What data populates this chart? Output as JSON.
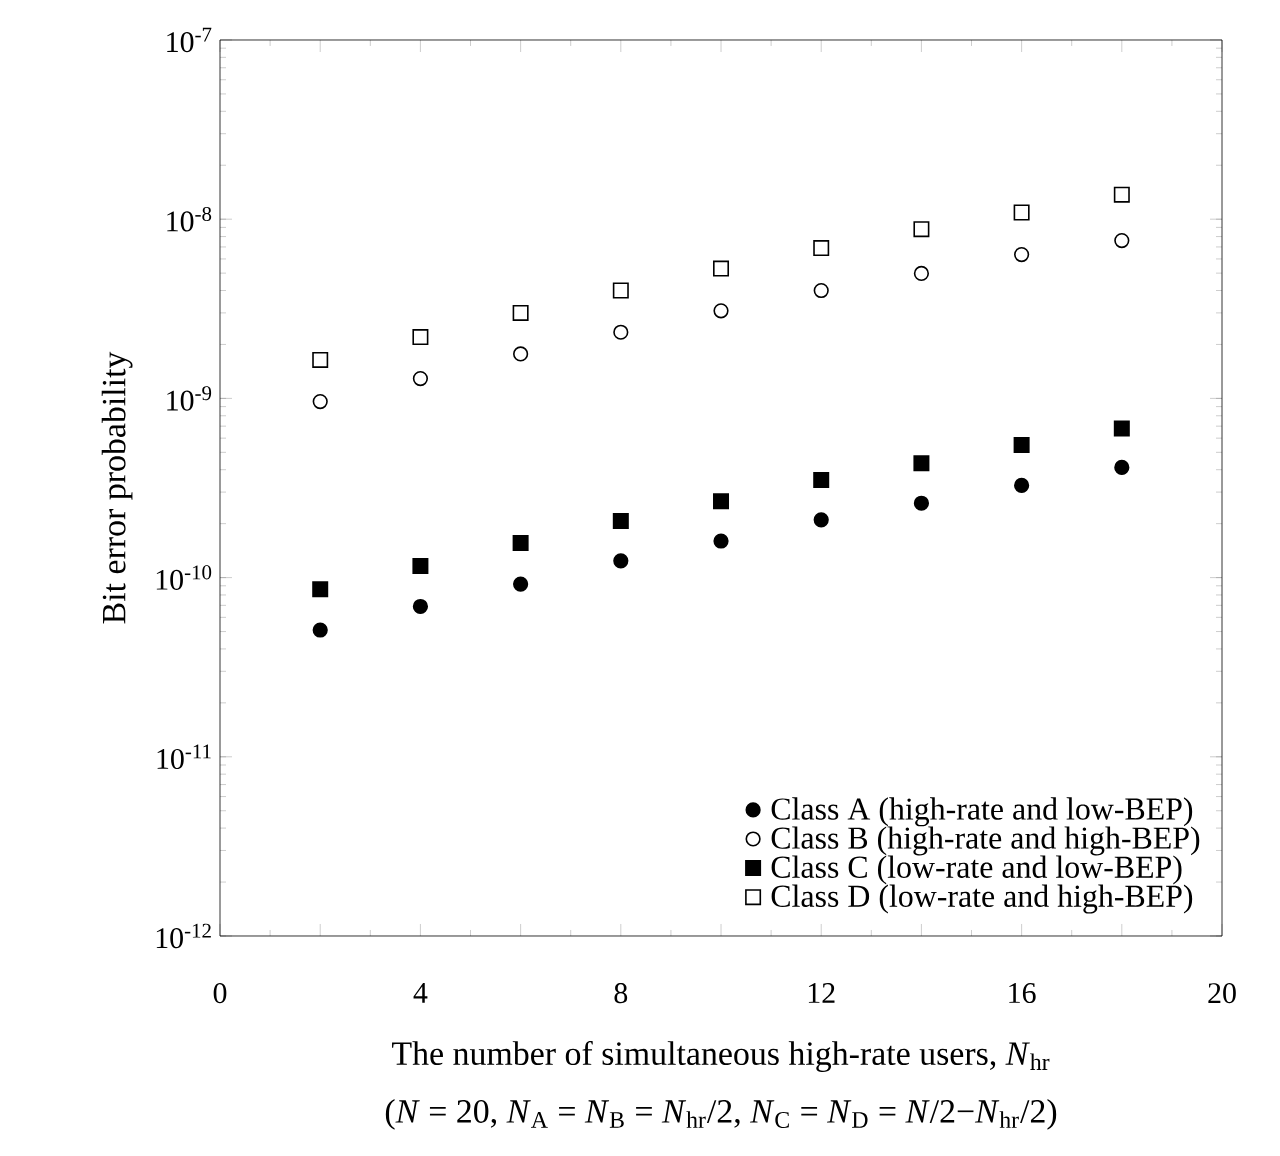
{
  "chart_data": {
    "type": "scatter",
    "xlabel": "The number of simultaneous high-rate users, *N*$_{hr}$",
    "ylabel": "Bit error probability",
    "annotations": [
      "(*N* = 20, *N*$_{A}$ = *N*$_{B}$ = *N*$_{hr}$/2, *N*$_{C}$ = *N*$_{D}$ = *N*/2−*N*$_{hr}$/2)"
    ],
    "x": [
      2,
      4,
      6,
      8,
      10,
      12,
      14,
      16,
      18
    ],
    "series": [
      {
        "name": "Class A (high-rate and low-BEP)",
        "color": "#000000",
        "marker": "circle",
        "values": [
          5.1e-11,
          6.9e-11,
          9.2e-11,
          1.24e-10,
          1.6e-10,
          2.1e-10,
          2.6e-10,
          3.27e-10,
          4.12e-10
        ]
      },
      {
        "name": "Class B (high-rate and high-BEP)",
        "color": "#ffffff",
        "marker": "circle",
        "values": [
          9.6e-10,
          1.29e-09,
          1.77e-09,
          2.34e-09,
          3.08e-09,
          4e-09,
          4.98e-09,
          6.35e-09,
          7.6e-09
        ]
      },
      {
        "name": "Class C (low-rate and low-BEP)",
        "color": "#000000",
        "marker": "square",
        "values": [
          8.6e-11,
          1.16e-10,
          1.56e-10,
          2.07e-10,
          2.67e-10,
          3.5e-10,
          4.35e-10,
          5.5e-10,
          6.8e-10
        ]
      },
      {
        "name": "Class D (low-rate and high-BEP)",
        "color": "#ffffff",
        "marker": "square",
        "values": [
          1.64e-09,
          2.2e-09,
          3e-09,
          4e-09,
          5.3e-09,
          6.9e-09,
          8.8e-09,
          1.09e-08,
          1.37e-08
        ]
      }
    ],
    "xlim": [
      0,
      20
    ],
    "xticks": [
      0,
      {
        "value": 2,
        "label": null
      },
      4,
      {
        "value": 6,
        "label": null
      },
      8,
      {
        "value": 10,
        "label": null
      },
      12,
      {
        "value": 14,
        "label": null
      },
      16,
      {
        "value": 18,
        "label": null
      },
      20
    ],
    "ylim": [
      1e-12,
      1e-07
    ],
    "log": "y",
    "yticks": [
      {
        "value": 1e-12,
        "label": "10$^{-12}$"
      },
      {
        "value": 1e-11,
        "label": "10$^{-11}$"
      },
      {
        "value": 1e-10,
        "label": "10$^{-10}$"
      },
      {
        "value": 1e-09,
        "label": "10$^{-9}$"
      },
      {
        "value": 1e-08,
        "label": "10$^{-8}$"
      },
      {
        "value": 1e-07,
        "label": "10$^{-7}$"
      }
    ],
    "grid": false,
    "legend": "bottom right"
  }
}
